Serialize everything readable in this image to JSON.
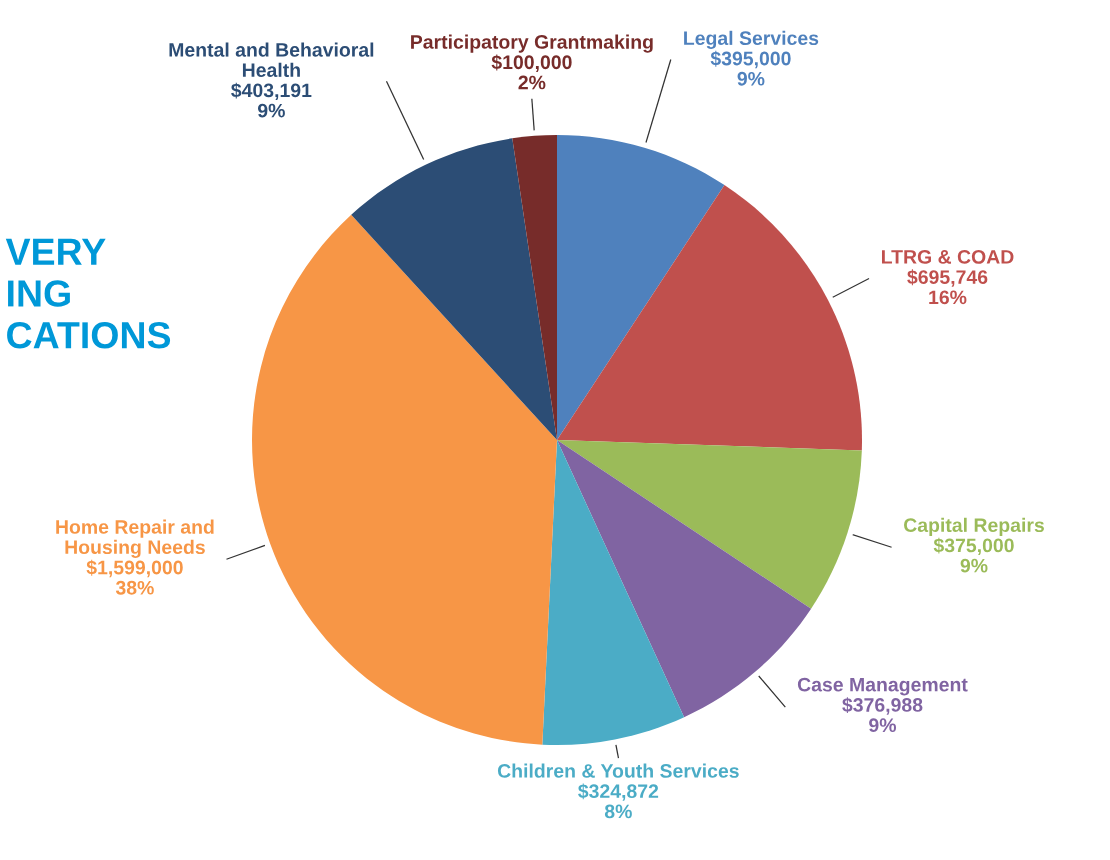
{
  "chart_data": {
    "type": "pie",
    "title": "VERY\nING\nCATIONS",
    "categories": [
      "Legal Services",
      "LTRG & COAD",
      "Capital Repairs",
      "Case Management",
      "Children & Youth Services",
      "Home Repair and\nHousing Needs",
      "Mental and Behavioral\nHealth",
      "Participatory Grantmaking"
    ],
    "values": [
      395000,
      695746,
      375000,
      376988,
      324872,
      1599000,
      403191,
      100000
    ],
    "value_labels": [
      "$395,000\n9%",
      "$695,746\n16%",
      "$375,000\n9%",
      "$376,988\n9%",
      "$324,872\n8%",
      "$1,599,000\n38%",
      "$403,191\n9%",
      "$100,000\n2%"
    ],
    "colors": [
      "#4f81bd",
      "#c0504d",
      "#9bbb59",
      "#8064a2",
      "#4bacc6",
      "#f79646",
      "#2c4d75",
      "#772c2a"
    ],
    "legend": false
  }
}
